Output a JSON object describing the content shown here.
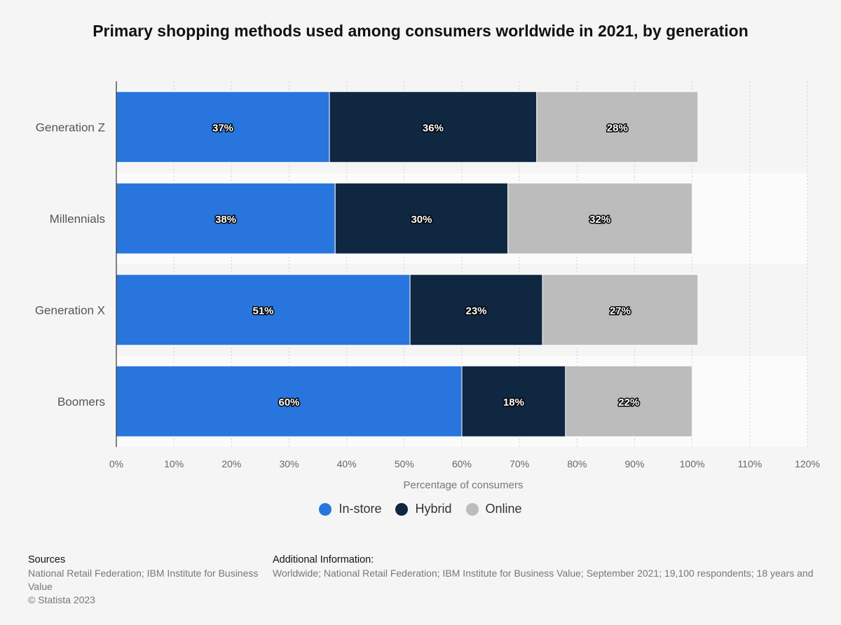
{
  "chart_data": {
    "type": "bar",
    "orientation": "horizontal",
    "stacked": true,
    "title": "Primary shopping methods used among consumers worldwide in 2021, by generation",
    "categories": [
      "Generation Z",
      "Millennials",
      "Generation X",
      "Boomers"
    ],
    "series": [
      {
        "name": "In-store",
        "values": [
          37,
          38,
          51,
          60
        ],
        "labels": [
          "37%",
          "38%",
          "51%",
          "60%"
        ]
      },
      {
        "name": "Hybrid",
        "values": [
          36,
          30,
          23,
          18
        ],
        "labels": [
          "36%",
          "30%",
          "23%",
          "18%"
        ]
      },
      {
        "name": "Online",
        "values": [
          28,
          32,
          27,
          22
        ],
        "labels": [
          "28%",
          "32%",
          "27%",
          "22%"
        ]
      }
    ],
    "xlabel": "Percentage of consumers",
    "xlim": [
      0,
      120
    ],
    "xticks": [
      0,
      10,
      20,
      30,
      40,
      50,
      60,
      70,
      80,
      90,
      100,
      110,
      120
    ],
    "xtick_labels": [
      "0%",
      "10%",
      "20%",
      "30%",
      "40%",
      "50%",
      "60%",
      "70%",
      "80%",
      "90%",
      "100%",
      "110%",
      "120%"
    ],
    "grid": true,
    "legend": "bottom",
    "colors": [
      "#2876dd",
      "#0f2741",
      "#bcbcbc"
    ]
  },
  "footer": {
    "sources_heading": "Sources",
    "sources_text": "National Retail Federation; IBM Institute for Business Value",
    "copyright": "© Statista 2023",
    "info_heading": "Additional Information:",
    "info_text": "Worldwide; National Retail Federation; IBM Institute for Business Value; September 2021; 19,100 respondents; 18 years and"
  }
}
